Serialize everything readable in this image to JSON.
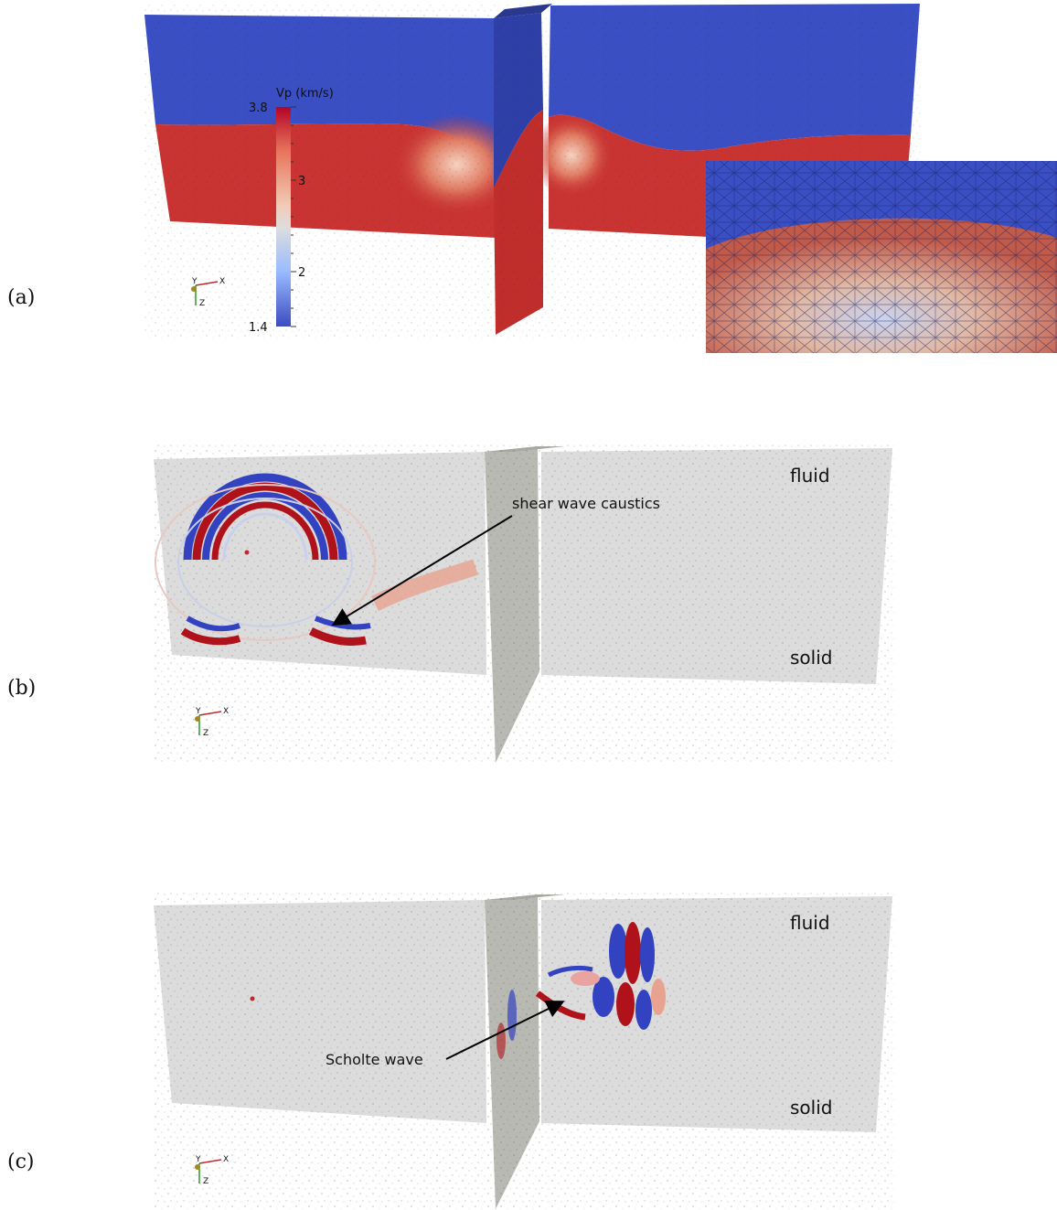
{
  "panels": {
    "a": {
      "label": "(a)",
      "colorbar": {
        "title": "Vp (km/s)",
        "max_label": "3.8",
        "tick_3": "3",
        "tick_2": "2",
        "min_label": "1.4",
        "high_color": "#c0282b",
        "mid_color": "#dcdcdc",
        "low_color": "#3a4fc4"
      },
      "axes": {
        "x": "X",
        "y": "Y",
        "z": "Z"
      }
    },
    "b": {
      "label": "(b)",
      "annotation": "shear wave caustics",
      "top_label": "fluid",
      "bottom_label": "solid",
      "axes": {
        "x": "X",
        "y": "Y",
        "z": "Z"
      }
    },
    "c": {
      "label": "(c)",
      "annotation": "Scholte wave",
      "top_label": "fluid",
      "bottom_label": "solid",
      "axes": {
        "x": "X",
        "y": "Y",
        "z": "Z"
      }
    }
  },
  "colors": {
    "fluid_blue": "#3a4fc4",
    "solid_red": "#c93432",
    "background_gray": "#dcdcdc",
    "wave_red": "#b0121b",
    "wave_blue": "#3342c0"
  }
}
